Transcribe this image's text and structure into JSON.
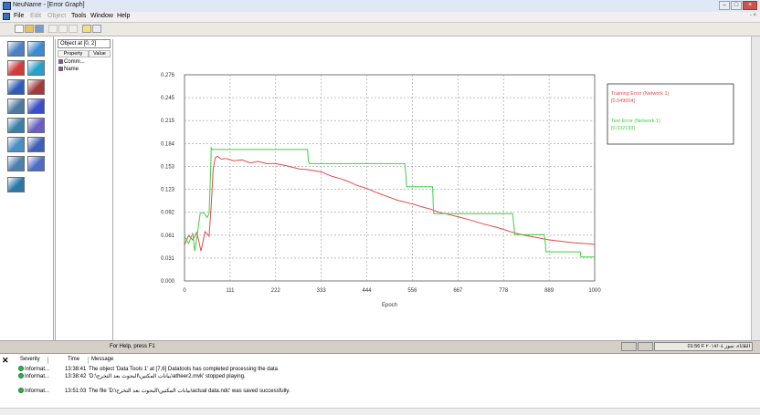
{
  "window": {
    "title": "NeuName - [Error Graph]"
  },
  "menu": {
    "items": [
      "File",
      "Edit",
      "Object",
      "Tools",
      "Window",
      "Help"
    ],
    "disabled": [
      false,
      true,
      true,
      false,
      false,
      false
    ],
    "mdi_controls": "- ×"
  },
  "colors": {
    "training": "#e54a4a",
    "test": "#3fcf3f",
    "grid": "#9a9a9a"
  },
  "palette": [
    {
      "name": "input-tool-icon",
      "color": "#4a7fc1"
    },
    {
      "name": "output-tool-icon",
      "color": "#3b8bd0"
    },
    {
      "name": "axon-tool-icon",
      "color": "#d03a3a"
    },
    {
      "name": "synapse-tool-icon",
      "color": "#27a0c8"
    },
    {
      "name": "bias-tool-icon",
      "color": "#2d5db8"
    },
    {
      "name": "cluster-tool-icon",
      "color": "#a23a3a"
    },
    {
      "name": "file-tool-icon",
      "color": "#4c7a9e"
    },
    {
      "name": "probe-tool-icon",
      "color": "#3a4fc7"
    },
    {
      "name": "data-graph-tool-icon",
      "color": "#3a7fa8"
    },
    {
      "name": "matrix-tool-icon",
      "color": "#6b5ec2"
    },
    {
      "name": "stack-tool-icon",
      "color": "#4a8cc4"
    },
    {
      "name": "grid-tool-icon",
      "color": "#3c5fb8"
    },
    {
      "name": "network-tool-icon",
      "color": "#4b7fb1"
    },
    {
      "name": "node-tool-icon",
      "color": "#4d6cc4"
    },
    {
      "name": "globe-tool-icon",
      "color": "#2c76a8"
    }
  ],
  "object_panel": {
    "title": "Object at [0, 2]",
    "col_property": "Property",
    "col_value": "Value",
    "props": [
      "Comm...",
      "Name"
    ]
  },
  "chart_data": {
    "type": "line",
    "xlabel": "Epoch",
    "xlim": [
      0,
      1000
    ],
    "ylim": [
      0,
      0.276
    ],
    "xticks": [
      "0",
      "111",
      "222",
      "333",
      "444",
      "556",
      "667",
      "778",
      "889",
      "1000"
    ],
    "yticks": [
      "0.000",
      "0.031",
      "0.061",
      "0.092",
      "0.123",
      "0.153",
      "0.184",
      "0.215",
      "0.245",
      "0.276"
    ],
    "grid": true,
    "legend_position": "top-right",
    "series": [
      {
        "name": "Training Error (Network 1)",
        "value_label": "0.049604",
        "x": [
          0,
          10,
          20,
          30,
          40,
          50,
          60,
          65,
          70,
          75,
          80,
          90,
          100,
          120,
          140,
          160,
          180,
          200,
          222,
          250,
          280,
          300,
          333,
          360,
          380,
          400,
          420,
          444,
          470,
          500,
          520,
          556,
          580,
          600,
          620,
          667,
          700,
          730,
          760,
          778,
          800,
          830,
          860,
          889,
          920,
          950,
          980,
          1000
        ],
        "y": [
          0.048,
          0.061,
          0.055,
          0.065,
          0.04,
          0.066,
          0.06,
          0.1,
          0.15,
          0.165,
          0.167,
          0.163,
          0.164,
          0.161,
          0.162,
          0.158,
          0.16,
          0.157,
          0.157,
          0.154,
          0.15,
          0.149,
          0.146,
          0.14,
          0.137,
          0.133,
          0.128,
          0.124,
          0.118,
          0.112,
          0.108,
          0.103,
          0.099,
          0.096,
          0.092,
          0.086,
          0.081,
          0.076,
          0.072,
          0.069,
          0.065,
          0.061,
          0.058,
          0.055,
          0.053,
          0.051,
          0.05,
          0.049
        ]
      },
      {
        "name": "Test Error (Network 1)",
        "value_label": "0.032193",
        "x": [
          0,
          10,
          20,
          25,
          30,
          38,
          45,
          50,
          55,
          60,
          62,
          64,
          65,
          67,
          300,
          302,
          304,
          305,
          537,
          540,
          541,
          542,
          605,
          606,
          607,
          608,
          800,
          803,
          805,
          806,
          877,
          880,
          881,
          882,
          965,
          966,
          967,
          968,
          1000
        ],
        "y": [
          0.06,
          0.05,
          0.064,
          0.04,
          0.058,
          0.09,
          0.092,
          0.089,
          0.085,
          0.09,
          0.12,
          0.15,
          0.178,
          0.176,
          0.176,
          0.16,
          0.158,
          0.157,
          0.157,
          0.14,
          0.13,
          0.126,
          0.126,
          0.11,
          0.094,
          0.09,
          0.09,
          0.075,
          0.063,
          0.062,
          0.062,
          0.05,
          0.04,
          0.039,
          0.039,
          0.034,
          0.032,
          0.032,
          0.032
        ]
      }
    ]
  },
  "status": {
    "left": "For Help, press F1",
    "right": "01:56 F  الثلاثاء، تموز ٢٠١٧/٠٤"
  },
  "log": {
    "headers": [
      "Severity",
      "Time",
      "Message"
    ],
    "rows": [
      {
        "severity": "Informat...",
        "time": "13:38:41",
        "message": "The object 'Data Tools 1' at [7,6] Datatools has completed processing the data"
      },
      {
        "severity": "Informat...",
        "time": "13:38:42",
        "message": "'D:\\بيانات المكتين\\البحوث بعد التخرج\\atheer2.mvk' stopped playing."
      },
      {
        "severity": "Informat...",
        "time": "13:51:03",
        "message": "The file 'D:\\بيانات المكتين\\البحوث بعد التخرج\\actual data.ndc' was saved successfully."
      }
    ]
  }
}
